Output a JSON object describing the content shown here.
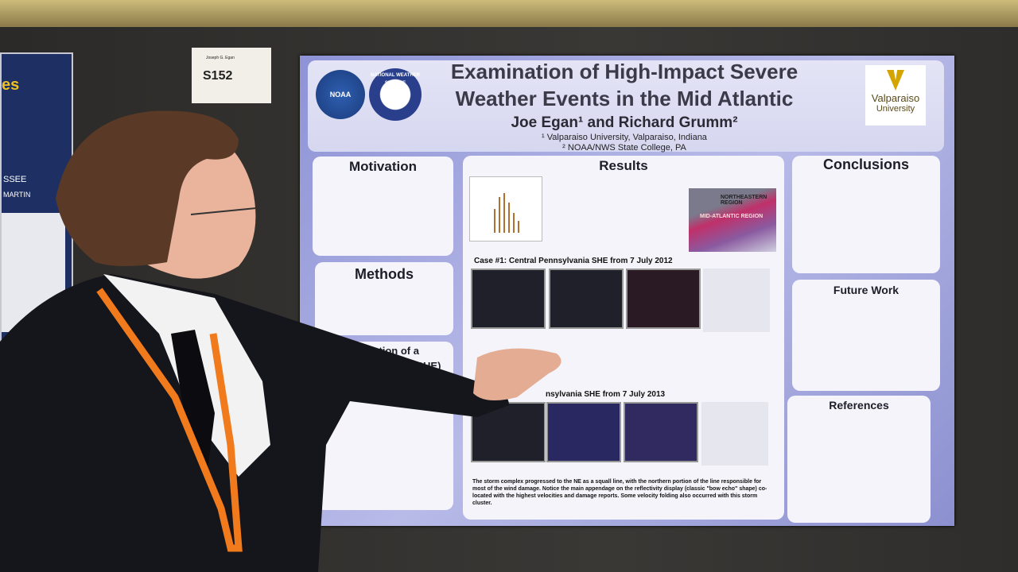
{
  "board_tag": {
    "name": "Joseph G. Egan",
    "number": "S152"
  },
  "neighbor_poster": {
    "fragments": [
      "es",
      "SSEE",
      "MARTIN"
    ]
  },
  "poster": {
    "title": [
      "Examination of High-Impact Severe",
      "Weather Events in the Mid Atlantic"
    ],
    "authors": "Joe Egan¹ and Richard Grumm²",
    "affiliations": [
      "¹ Valparaiso University, Valparaiso, Indiana",
      "² NOAA/NWS State College, PA"
    ],
    "logos": {
      "noaa": "NOAA",
      "nws": "NATIONAL WEATHER SERVICE",
      "university": [
        "Valparaiso",
        "University"
      ]
    },
    "sections": {
      "motivation": "Motivation",
      "methods": "Methods",
      "evolution": [
        "Evolution of a",
        "Spearhead Echo (SHE)"
      ],
      "results": "Results",
      "conclusions": "Conclusions",
      "future_work": "Future Work",
      "references": "References"
    },
    "results": {
      "map_labels": [
        "NORTHEASTERN REGION",
        "MID-ATLANTIC REGION"
      ],
      "case1_title": "Case #1: Central Pennsylvania SHE from 7 July 2012",
      "case2_title": "nsylvania SHE from 7 July 2013",
      "case2_text": "The storm complex progressed to the NE as a squall line, with the northern portion of the line responsible for most of the wind damage. Notice the main appendage on the reflectivity display (classic \"bow echo\" shape) co-located with the highest velocities and damage reports. Some velocity folding also occurred with this storm cluster."
    }
  }
}
